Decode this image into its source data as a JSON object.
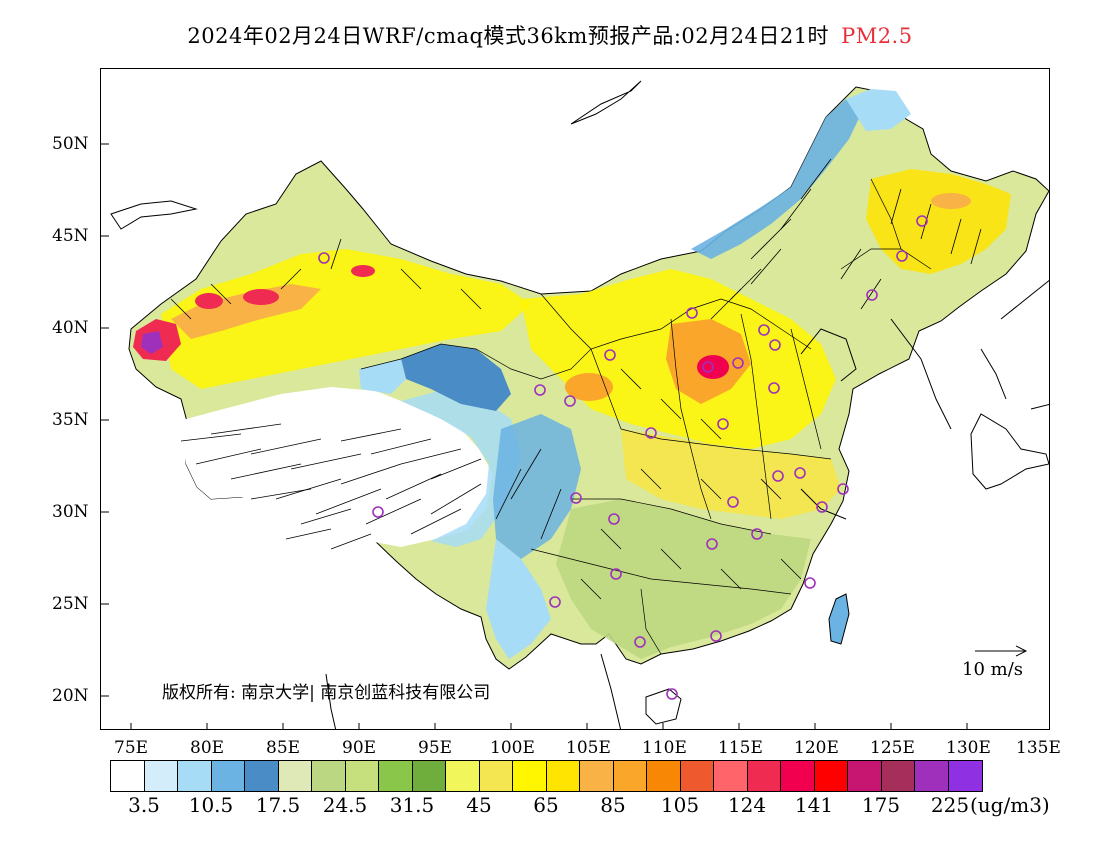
{
  "title": {
    "main": "2024年02月24日WRF/cmaq模式36km预报产品:02月24日21时",
    "variable": "PM2.5"
  },
  "lat_labels": [
    "50N",
    "45N",
    "40N",
    "35N",
    "30N",
    "25N",
    "20N"
  ],
  "lon_labels": [
    "75E",
    "80E",
    "85E",
    "90E",
    "95E",
    "100E",
    "105E",
    "110E",
    "115E",
    "120E",
    "125E",
    "130E",
    "135E"
  ],
  "copyright": "版权所有: 南京大学| 南京创蓝科技有限公司",
  "scale_label": "10 m/s",
  "legend": {
    "colors": [
      "#ffffff",
      "#d4edfb",
      "#a6dcf6",
      "#6ab3e3",
      "#4a8cc6",
      "#dfe9b7",
      "#bcd781",
      "#c5e07c",
      "#8ac64a",
      "#6fae3c",
      "#f1f65a",
      "#f3e650",
      "#fff600",
      "#fee400",
      "#f8b245",
      "#faa62a",
      "#f98706",
      "#ee5a2d",
      "#fe6469",
      "#ef2b51",
      "#f0004f",
      "#fe0000",
      "#c71672",
      "#a52e5a",
      "#9f30bc",
      "#8f30e2"
    ],
    "labels": [
      "3.5",
      "10.5",
      "17.5",
      "24.5",
      "31.5",
      "45",
      "65",
      "85",
      "105",
      "124",
      "141",
      "175",
      "225"
    ],
    "unit": "(ug/m3)"
  }
}
